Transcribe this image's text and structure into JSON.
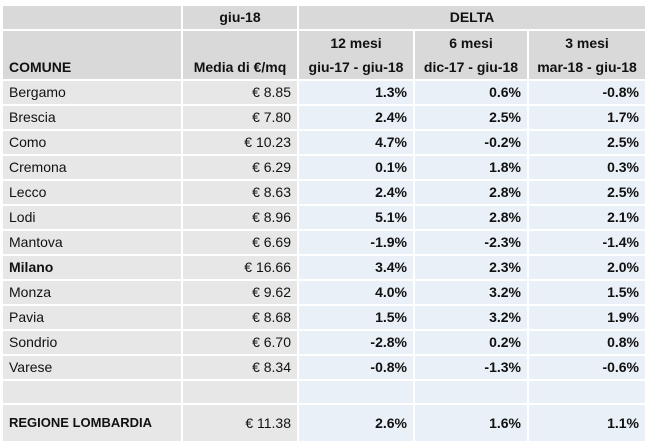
{
  "header": {
    "period_label": "giu-18",
    "delta_label": "DELTA",
    "comune_label": "COMUNE",
    "media_label": "Media di €/mq",
    "periods": [
      {
        "title": "12 mesi",
        "range": "giu-17 - giu-18"
      },
      {
        "title": "6 mesi",
        "range": "dic-17 - giu-18"
      },
      {
        "title": "3 mesi",
        "range": "mar-18 - giu-18"
      }
    ]
  },
  "rows": [
    {
      "comune": "Bergamo",
      "media": "€ 8.85",
      "d12": "1.3%",
      "d6": "0.6%",
      "d3": "-0.8%"
    },
    {
      "comune": "Brescia",
      "media": "€ 7.80",
      "d12": "2.4%",
      "d6": "2.5%",
      "d3": "1.7%"
    },
    {
      "comune": "Como",
      "media": "€ 10.23",
      "d12": "4.7%",
      "d6": "-0.2%",
      "d3": "2.5%"
    },
    {
      "comune": "Cremona",
      "media": "€ 6.29",
      "d12": "0.1%",
      "d6": "1.8%",
      "d3": "0.3%"
    },
    {
      "comune": "Lecco",
      "media": "€ 8.63",
      "d12": "2.4%",
      "d6": "2.8%",
      "d3": "2.5%"
    },
    {
      "comune": "Lodi",
      "media": "€ 8.96",
      "d12": "5.1%",
      "d6": "2.8%",
      "d3": "2.1%"
    },
    {
      "comune": "Mantova",
      "media": "€ 6.69",
      "d12": "-1.9%",
      "d6": "-2.3%",
      "d3": "-1.4%"
    },
    {
      "comune": "Milano",
      "media": "€ 16.66",
      "d12": "3.4%",
      "d6": "2.3%",
      "d3": "2.0%"
    },
    {
      "comune": "Monza",
      "media": "€ 9.62",
      "d12": "4.0%",
      "d6": "3.2%",
      "d3": "1.5%"
    },
    {
      "comune": "Pavia",
      "media": "€ 8.68",
      "d12": "1.5%",
      "d6": "3.2%",
      "d3": "1.9%"
    },
    {
      "comune": "Sondrio",
      "media": "€ 6.70",
      "d12": "-2.8%",
      "d6": "0.2%",
      "d3": "0.8%"
    },
    {
      "comune": "Varese",
      "media": "€ 8.34",
      "d12": "-0.8%",
      "d6": "-1.3%",
      "d3": "-0.6%"
    }
  ],
  "total": {
    "comune": "REGIONE LOMBARDIA",
    "media": "€ 11.38",
    "d12": "2.6%",
    "d6": "1.6%",
    "d3": "1.1%"
  }
}
